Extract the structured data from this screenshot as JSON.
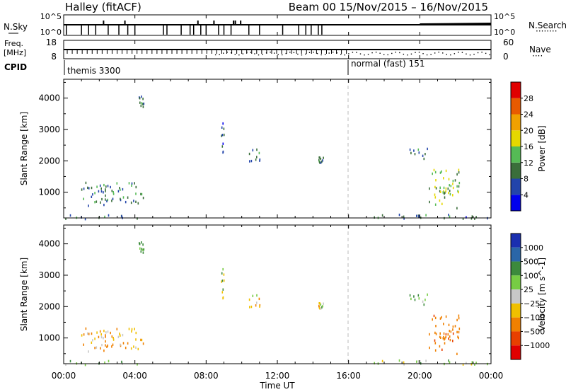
{
  "header": {
    "station": "Halley (fitACF)",
    "beam_info": "Beam 00   15/Nov/2015 – 16/Nov/2015"
  },
  "sky_panel": {
    "left_label": "N.Sky",
    "left_tick_top": "10^5",
    "left_tick_bottom": "10^0",
    "right_tick_top": "10^5",
    "right_tick_bottom": "10^0",
    "right_label": "N.Search",
    "right_legend": "········"
  },
  "freq_panel": {
    "left_label_1": "Freq.",
    "left_label_2": "[MHz]",
    "left_tick_top": "18",
    "left_tick_bottom": "8",
    "right_tick_top": "60",
    "right_tick_bottom": "0",
    "right_label": "Nave",
    "right_legend": "····"
  },
  "cpid": {
    "label": "CPID",
    "modes": [
      "themis 3300",
      "normal (fast) 151"
    ]
  },
  "x_axis": {
    "label": "Time UT",
    "ticks": [
      "00:00",
      "04:00",
      "08:00",
      "12:00",
      "16:00",
      "20:00",
      "00:00"
    ]
  },
  "power_panel": {
    "ylabel": "Slant Range [km]",
    "yticks": [
      "1000",
      "2000",
      "3000",
      "4000"
    ],
    "colorbar": {
      "label": "Power [dB]",
      "ticks": [
        "4",
        "8",
        "12",
        "16",
        "20",
        "24",
        "28"
      ],
      "colors": [
        "#0000ee",
        "#2244aa",
        "#3a6e3a",
        "#55bb55",
        "#e6d800",
        "#f0a000",
        "#e85a00",
        "#e00000"
      ]
    }
  },
  "velocity_panel": {
    "ylabel": "Slant Range [km]",
    "yticks": [
      "1000",
      "2000",
      "3000",
      "4000"
    ],
    "colorbar": {
      "label": "Velocity [m s^-1]",
      "ticks": [
        "1000",
        "500",
        "100",
        "25",
        "−25",
        "−100",
        "−500",
        "−1000"
      ],
      "colors": [
        "#1a2fb0",
        "#2a66a8",
        "#3c8a3c",
        "#77cc44",
        "#c8c8c8",
        "#f0c000",
        "#f08000",
        "#e84000",
        "#e00000"
      ]
    }
  },
  "chart_data": {
    "type": "heatmap",
    "title": "Halley (fitACF)  Beam 00  15/Nov/2015 – 16/Nov/2015",
    "xlabel": "Time UT",
    "xlim_hours": [
      0,
      24
    ],
    "x_ticks_hours": [
      0,
      4,
      8,
      12,
      16,
      20,
      24
    ],
    "ylabel": "Slant Range [km]",
    "ylim_km": [
      180,
      4600
    ],
    "y_ticks_km": [
      1000,
      2000,
      3000,
      4000
    ],
    "mode_change_hour": 16,
    "cpid": [
      {
        "name": "themis 3300",
        "start_hour": 0
      },
      {
        "name": "normal (fast) 151",
        "start_hour": 16
      }
    ],
    "power_range_db": [
      0,
      30
    ],
    "velocity_range_ms": [
      -1000,
      1000
    ],
    "echo_regions": [
      {
        "t0": 0.9,
        "t1": 4.5,
        "r0": 600,
        "r1": 1350,
        "power": 10,
        "velocity": -120
      },
      {
        "t0": 0.0,
        "t1": 4.5,
        "r0": 180,
        "r1": 300,
        "power": 8,
        "velocity": 40
      },
      {
        "t0": 4.2,
        "t1": 4.5,
        "r0": 3700,
        "r1": 4100,
        "power": 10,
        "velocity": 200
      },
      {
        "t0": 8.8,
        "t1": 9.0,
        "r0": 2300,
        "r1": 3300,
        "power": 8,
        "velocity": 20
      },
      {
        "t0": 10.4,
        "t1": 11.0,
        "r0": 2000,
        "r1": 2400,
        "power": 9,
        "velocity": 0
      },
      {
        "t0": 14.3,
        "t1": 14.6,
        "r0": 1950,
        "r1": 2200,
        "power": 8,
        "velocity": 0
      },
      {
        "t0": 19.3,
        "t1": 20.4,
        "r0": 2100,
        "r1": 2450,
        "power": 8,
        "velocity": 150
      },
      {
        "t0": 20.5,
        "t1": 22.2,
        "r0": 500,
        "r1": 1800,
        "power": 14,
        "velocity": -420
      },
      {
        "t0": 16.8,
        "t1": 23.8,
        "r0": 180,
        "r1": 320,
        "power": 8,
        "velocity": 30
      }
    ]
  }
}
